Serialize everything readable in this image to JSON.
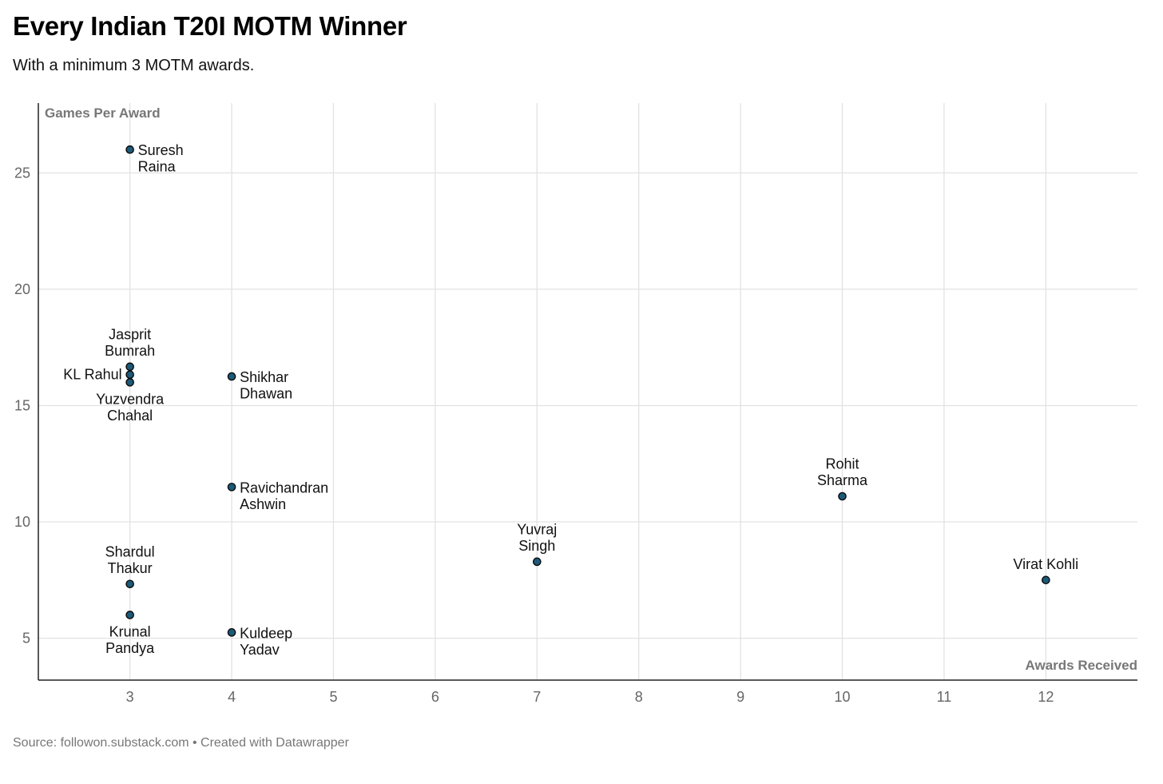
{
  "title": "Every Indian T20I MOTM Winner",
  "subtitle": "With a minimum 3 MOTM awards.",
  "source": "Source: followon.substack.com • Created with Datawrapper",
  "colors": {
    "point_fill": "#1d5a7a",
    "point_stroke": "#0a0a0a",
    "grid": "#e2e2e2",
    "axis": "#222222"
  },
  "chart_data": {
    "type": "scatter",
    "title": "Every Indian T20I MOTM Winner",
    "subtitle": "With a minimum 3 MOTM awards.",
    "xlabel": "Awards Received",
    "ylabel": "Games Per Award",
    "xlim": [
      2.1,
      12.9
    ],
    "ylim": [
      3.2,
      28
    ],
    "xticks": [
      3,
      4,
      5,
      6,
      7,
      8,
      9,
      10,
      11,
      12
    ],
    "yticks": [
      5,
      10,
      15,
      20,
      25
    ],
    "grid": true,
    "points": [
      {
        "name": "Suresh Raina",
        "label_lines": [
          "Suresh",
          "Raina"
        ],
        "x": 3,
        "y": 26.0,
        "label_pos": "right-below"
      },
      {
        "name": "Jasprit Bumrah",
        "label_lines": [
          "Jasprit",
          "Bumrah"
        ],
        "x": 3,
        "y": 16.67,
        "label_pos": "above"
      },
      {
        "name": "KL Rahul",
        "label_lines": [
          "KL Rahul"
        ],
        "x": 3,
        "y": 16.33,
        "label_pos": "left"
      },
      {
        "name": "Yuzvendra Chahal",
        "label_lines": [
          "Yuzvendra",
          "Chahal"
        ],
        "x": 3,
        "y": 16.0,
        "label_pos": "below"
      },
      {
        "name": "Shikhar Dhawan",
        "label_lines": [
          "Shikhar",
          "Dhawan"
        ],
        "x": 4,
        "y": 16.25,
        "label_pos": "right"
      },
      {
        "name": "Ravichandran Ashwin",
        "label_lines": [
          "Ravichandran",
          "Ashwin"
        ],
        "x": 4,
        "y": 11.5,
        "label_pos": "right"
      },
      {
        "name": "Shardul Thakur",
        "label_lines": [
          "Shardul",
          "Thakur"
        ],
        "x": 3,
        "y": 7.33,
        "label_pos": "above"
      },
      {
        "name": "Krunal Pandya",
        "label_lines": [
          "Krunal",
          "Pandya"
        ],
        "x": 3,
        "y": 6.0,
        "label_pos": "below"
      },
      {
        "name": "Kuldeep Yadav",
        "label_lines": [
          "Kuldeep",
          "Yadav"
        ],
        "x": 4,
        "y": 5.25,
        "label_pos": "right"
      },
      {
        "name": "Yuvraj Singh",
        "label_lines": [
          "Yuvraj",
          "Singh"
        ],
        "x": 7,
        "y": 8.29,
        "label_pos": "above"
      },
      {
        "name": "Rohit Sharma",
        "label_lines": [
          "Rohit",
          "Sharma"
        ],
        "x": 10,
        "y": 11.1,
        "label_pos": "above"
      },
      {
        "name": "Virat Kohli",
        "label_lines": [
          "Virat Kohli"
        ],
        "x": 12,
        "y": 7.5,
        "label_pos": "above"
      }
    ]
  }
}
